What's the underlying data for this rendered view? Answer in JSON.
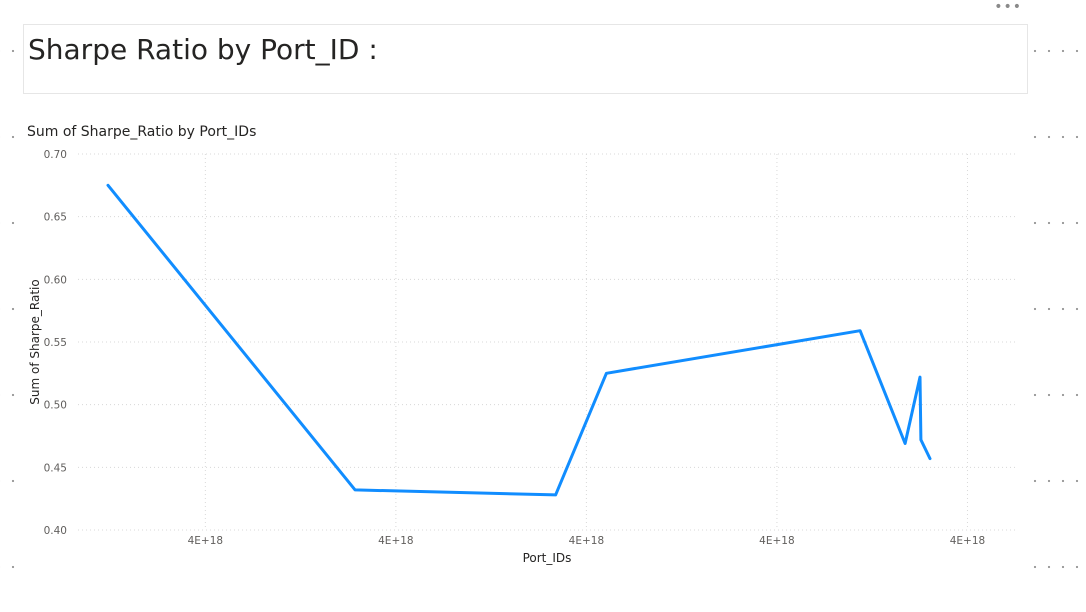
{
  "header": {
    "title": "Sharpe Ratio by Port_ID :",
    "menu_icon": "more-options-icon"
  },
  "chart_data": {
    "type": "line",
    "title": "Sum of Sharpe_Ratio by Port_IDs",
    "xlabel": "Port_IDs",
    "ylabel": "Sum of Sharpe_Ratio",
    "ylim": [
      0.4,
      0.7
    ],
    "y_ticks": [
      "0.70",
      "0.65",
      "0.60",
      "0.55",
      "0.50",
      "0.45",
      "0.40"
    ],
    "x_tick_labels": [
      "4E+18",
      "4E+18",
      "4E+18",
      "4E+18",
      "4E+18"
    ],
    "x_ticks_position": [
      0.117,
      0.346,
      0.575,
      0.804,
      1.033
    ],
    "grid": true,
    "series": [
      {
        "color": "#118DFF",
        "points": [
          {
            "x": 0.0,
            "y": 0.675
          },
          {
            "x": 0.297,
            "y": 0.432
          },
          {
            "x": 0.538,
            "y": 0.428
          },
          {
            "x": 0.599,
            "y": 0.525
          },
          {
            "x": 0.904,
            "y": 0.559
          },
          {
            "x": 0.958,
            "y": 0.469
          },
          {
            "x": 0.976,
            "y": 0.522
          },
          {
            "x": 0.977,
            "y": 0.472
          },
          {
            "x": 0.988,
            "y": 0.457
          }
        ]
      }
    ]
  }
}
